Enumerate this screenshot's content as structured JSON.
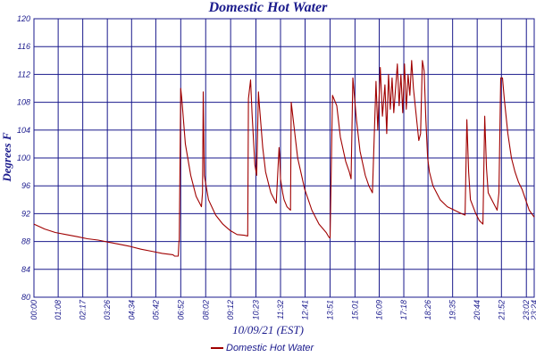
{
  "chart_data": {
    "type": "line",
    "title": "Domestic Hot Water",
    "xlabel": "10/09/21 (EST)",
    "ylabel": "Degrees F",
    "ylim": [
      80,
      120
    ],
    "xlim": [
      "00:00",
      "23:24"
    ],
    "grid": true,
    "legend_position": "bottom-center",
    "y_ticks": [
      "80",
      "84",
      "88",
      "92",
      "96",
      "100",
      "104",
      "108",
      "112",
      "116",
      "120"
    ],
    "x_ticks": [
      "00:00",
      "01:08",
      "02:17",
      "03:26",
      "04:34",
      "05:42",
      "06:52",
      "08:02",
      "09:12",
      "10:23",
      "11:32",
      "12:41",
      "13:51",
      "15:01",
      "16:09",
      "17:18",
      "18:26",
      "19:35",
      "20:44",
      "21:52",
      "23:02",
      "23:24"
    ],
    "series": [
      {
        "name": "Domestic Hot Water",
        "color": "#a00000",
        "x": [
          "00:00",
          "00:30",
          "01:00",
          "01:30",
          "02:00",
          "02:30",
          "03:00",
          "03:30",
          "04:00",
          "04:30",
          "05:00",
          "05:30",
          "06:00",
          "06:30",
          "06:35",
          "06:45",
          "06:47",
          "06:48",
          "06:52",
          "06:55",
          "07:05",
          "07:20",
          "07:35",
          "07:50",
          "07:53",
          "07:55",
          "07:58",
          "08:10",
          "08:30",
          "08:50",
          "09:10",
          "09:30",
          "09:50",
          "10:00",
          "10:02",
          "10:08",
          "10:12",
          "10:20",
          "10:25",
          "10:30",
          "10:32",
          "10:42",
          "10:50",
          "11:00",
          "11:05",
          "11:20",
          "11:28",
          "11:30",
          "11:32",
          "11:38",
          "11:42",
          "11:50",
          "12:00",
          "12:02",
          "12:20",
          "12:40",
          "13:00",
          "13:20",
          "13:40",
          "13:48",
          "13:51",
          "13:58",
          "14:10",
          "14:20",
          "14:35",
          "14:45",
          "14:50",
          "14:55",
          "15:05",
          "15:15",
          "15:30",
          "15:40",
          "15:50",
          "16:00",
          "16:05",
          "16:12",
          "16:18",
          "16:25",
          "16:30",
          "16:35",
          "16:40",
          "16:45",
          "16:50",
          "16:55",
          "17:00",
          "17:05",
          "17:10",
          "17:15",
          "17:20",
          "17:25",
          "17:30",
          "17:35",
          "17:40",
          "17:45",
          "17:50",
          "17:55",
          "18:00",
          "18:05",
          "18:10",
          "18:15",
          "18:20",
          "18:25",
          "18:30",
          "18:40",
          "19:00",
          "19:20",
          "19:40",
          "20:00",
          "20:10",
          "20:15",
          "20:20",
          "20:25",
          "20:40",
          "20:50",
          "21:00",
          "21:05",
          "21:10",
          "21:15",
          "21:30",
          "21:40",
          "21:45",
          "21:50",
          "21:55",
          "22:00",
          "22:10",
          "22:20",
          "22:30",
          "22:40",
          "22:50",
          "23:00",
          "23:10",
          "23:24"
        ],
        "y": [
          90.5,
          89.8,
          89.3,
          89.0,
          88.7,
          88.4,
          88.2,
          87.9,
          87.6,
          87.3,
          86.9,
          86.6,
          86.3,
          86.1,
          85.9,
          85.9,
          88.0,
          88.2,
          110.0,
          108.5,
          102.0,
          97.5,
          94.5,
          93.0,
          95.0,
          109.5,
          97.5,
          94.0,
          91.8,
          90.5,
          89.6,
          89.0,
          88.9,
          88.8,
          108.5,
          111.2,
          106.5,
          99.0,
          97.5,
          109.5,
          108.0,
          101.5,
          98.0,
          96.0,
          95.0,
          93.5,
          101.5,
          100.0,
          97.0,
          95.0,
          94.0,
          93.0,
          92.5,
          108.0,
          100.0,
          95.5,
          92.5,
          90.5,
          89.3,
          88.6,
          88.5,
          109.0,
          107.5,
          103.0,
          99.5,
          98.0,
          97.0,
          111.5,
          105.5,
          101.0,
          97.5,
          96.0,
          95.0,
          111.0,
          104.0,
          113.0,
          106.0,
          110.5,
          103.5,
          112.0,
          107.0,
          111.5,
          106.5,
          110.0,
          113.5,
          107.5,
          112.0,
          106.5,
          113.5,
          107.0,
          112.0,
          109.0,
          114.0,
          110.0,
          107.5,
          105.0,
          102.5,
          103.5,
          114.0,
          112.5,
          105.5,
          100.0,
          98.0,
          96.0,
          94.0,
          93.0,
          92.5,
          92.0,
          91.8,
          105.5,
          98.0,
          94.0,
          92.0,
          91.0,
          90.5,
          106.0,
          98.5,
          95.0,
          93.5,
          92.5,
          95.0,
          111.5,
          111.5,
          108.5,
          103.5,
          100.0,
          98.0,
          96.5,
          95.5,
          94.0,
          92.5,
          91.5
        ]
      }
    ]
  }
}
